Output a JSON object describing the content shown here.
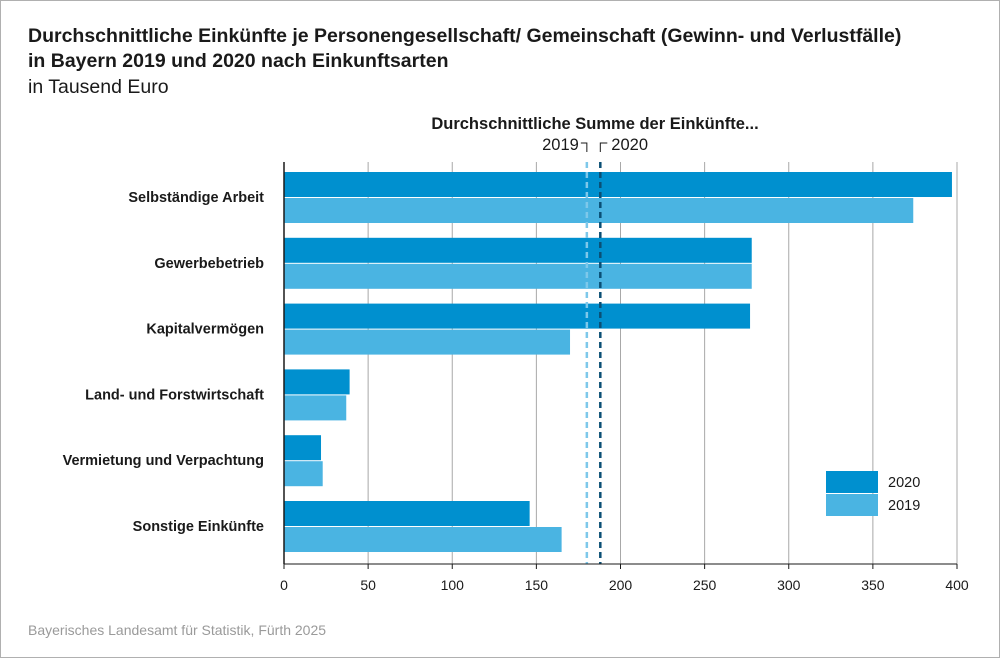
{
  "title_line1": "Durchschnittliche Einkünfte je Personengesellschaft/ Gemeinschaft (Gewinn- und Verlustfälle)",
  "title_line2": "in Bayern 2019 und 2020 nach Einkunftsarten",
  "subtitle": "in Tausend Euro",
  "source": "Bayerisches Landesamt für Statistik, Fürth 2025",
  "chart_data": {
    "type": "bar",
    "orientation": "horizontal",
    "categories": [
      "Selbständige Arbeit",
      "Gewerbebetrieb",
      "Kapitalvermögen",
      "Land- und Forstwirtschaft",
      "Vermietung und Verpachtung",
      "Sonstige Einkünfte"
    ],
    "series": [
      {
        "name": "2020",
        "color": "#0090cf",
        "values": [
          397,
          278,
          277,
          39,
          22,
          146
        ]
      },
      {
        "name": "2019",
        "color": "#4ab4e2",
        "values": [
          374,
          278,
          170,
          37,
          23,
          165
        ]
      }
    ],
    "xlim": [
      0,
      400
    ],
    "xticks": [
      0,
      50,
      100,
      150,
      200,
      250,
      300,
      350,
      400
    ],
    "grid": true,
    "legend": "bottom-right",
    "reference_lines": {
      "title": "Durchschnittliche Summe der Einkünfte...",
      "lines": [
        {
          "name": "2019",
          "value": 180,
          "color": "#7ec8ea",
          "style": "dashed"
        },
        {
          "name": "2020",
          "value": 188,
          "color": "#0a4f75",
          "style": "dashed"
        }
      ]
    }
  }
}
